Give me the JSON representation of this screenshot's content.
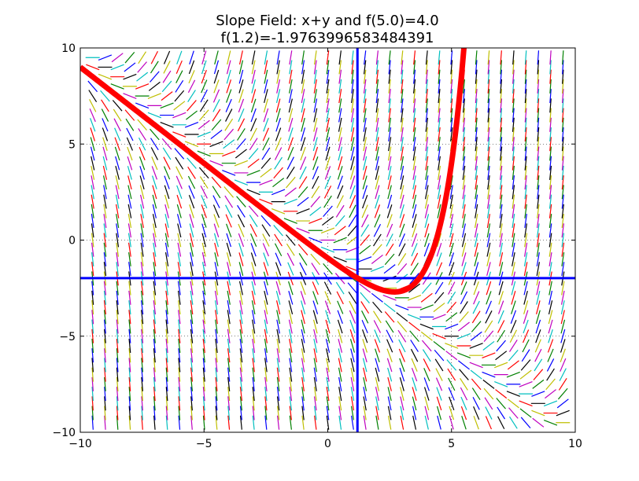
{
  "chart_data": {
    "type": "line",
    "title": "Slope Field: x+y and f(5.0)=4.0",
    "subtitle": "f(1.2)=-1.9763996583484391",
    "differential_equation": "x+y",
    "xlim": [
      -10,
      10
    ],
    "ylim": [
      -10,
      10
    ],
    "x_ticks": [
      -10,
      -5,
      0,
      5,
      10
    ],
    "y_ticks": [
      -10,
      -5,
      0,
      5,
      10
    ],
    "x_tick_labels": [
      "−10",
      "−5",
      "0",
      "5",
      "10"
    ],
    "y_tick_labels": [
      "−10",
      "−5",
      "0",
      "5",
      "10"
    ],
    "grid": true,
    "slope_field": {
      "x_step": 0.5,
      "y_step": 0.5,
      "segment_colors": [
        "#0000ff",
        "#008000",
        "#ff0000",
        "#00bfbf",
        "#bf00bf",
        "#bfbf00",
        "#000000"
      ]
    },
    "solution_curve": {
      "color": "#ff0000",
      "initial_condition": {
        "x": 5.0,
        "y": 4.0
      }
    },
    "marker_lines": {
      "x": 1.2,
      "y": -1.9763996583484391,
      "color": "#0000ff"
    }
  }
}
